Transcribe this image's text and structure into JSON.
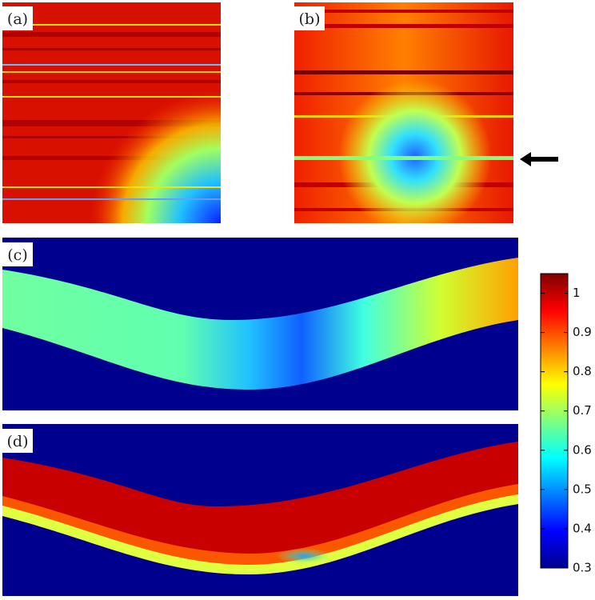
{
  "panels": [
    {
      "label": "(a)"
    },
    {
      "label": "(b)"
    },
    {
      "label": "(c)"
    },
    {
      "label": "(d)"
    }
  ],
  "colorbar": {
    "lim": [
      0.3,
      1.05
    ],
    "ticks": [
      0.3,
      0.4,
      0.5,
      0.6,
      0.7,
      0.8,
      0.9,
      1
    ]
  }
}
